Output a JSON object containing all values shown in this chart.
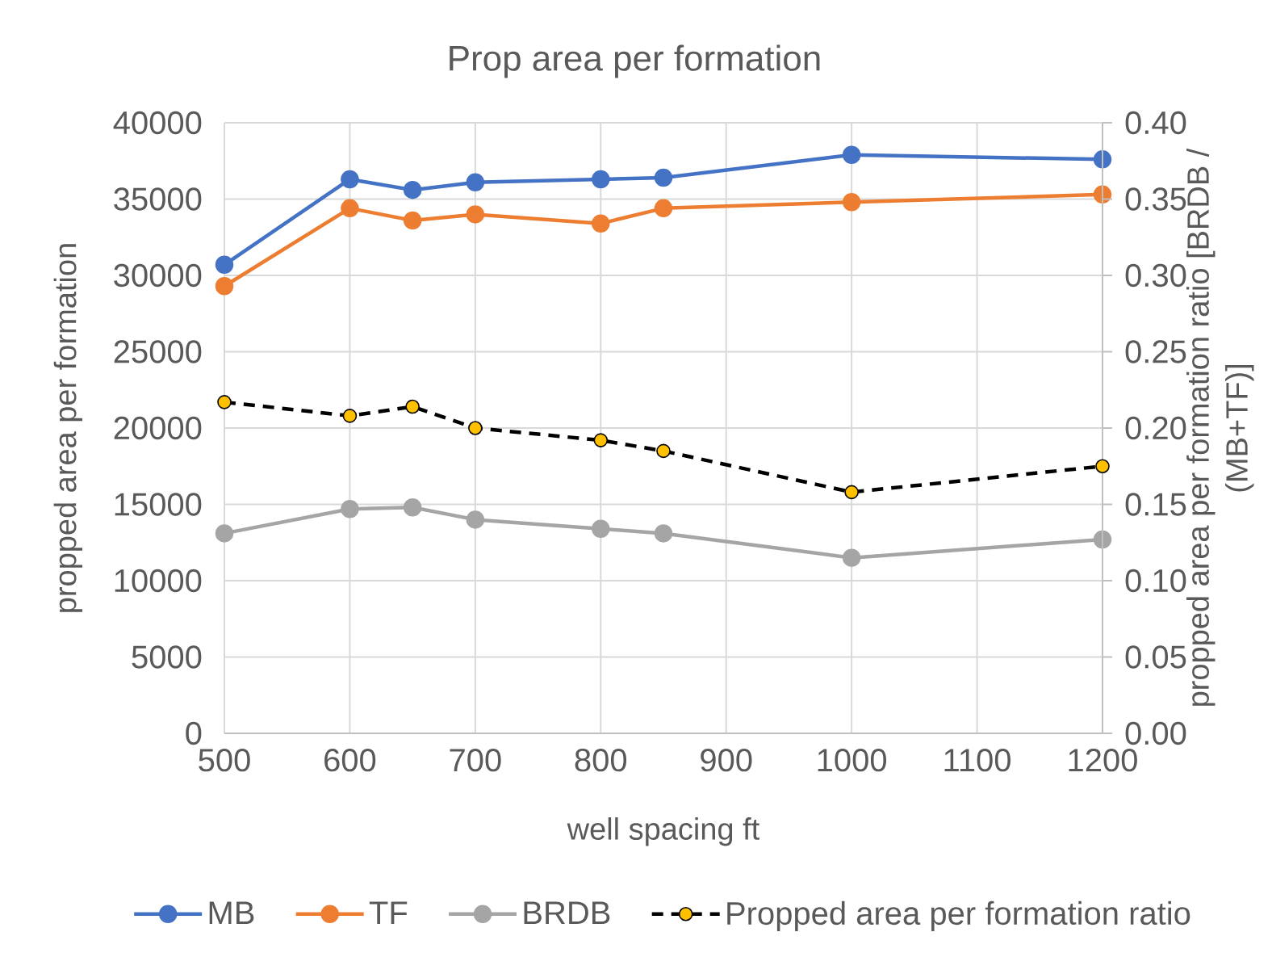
{
  "chart_data": {
    "type": "line",
    "title": "Prop area per formation",
    "xlabel": "well spacing ft",
    "ylabel": "propped area per formation",
    "y2label": "propped area per formation ratio [BRDB / (MB+TF)]",
    "x": [
      500,
      600,
      650,
      700,
      800,
      850,
      1000,
      1200
    ],
    "series": [
      {
        "name": "MB",
        "color": "#4472c4",
        "values": [
          30700,
          36300,
          35600,
          36100,
          36300,
          36400,
          37900,
          37600
        ]
      },
      {
        "name": "TF",
        "color": "#ed7d31",
        "values": [
          29300,
          34400,
          33600,
          34000,
          33400,
          34400,
          34800,
          35300
        ]
      },
      {
        "name": "BRDB",
        "color": "#a5a5a5",
        "values": [
          13100,
          14700,
          14800,
          14000,
          13400,
          13100,
          11500,
          12700
        ]
      },
      {
        "name": "Propped area per formation ratio",
        "color": "#000000",
        "colors": [
          "#ffc000",
          "#ffc000",
          "#ffc000",
          "#ffc000",
          "#ffc000",
          "#ffc000",
          "#ffc000",
          "#ffc000"
        ],
        "axis": "y2",
        "line_style": "dashed",
        "values": [
          0.217,
          0.208,
          0.214,
          0.2,
          0.192,
          0.185,
          0.158,
          0.175
        ]
      }
    ],
    "xlim": [
      500,
      1200
    ],
    "xticks": [
      500,
      600,
      700,
      800,
      900,
      1000,
      1100,
      1200
    ],
    "ylim": [
      0,
      40000
    ],
    "yticks": [
      0,
      5000,
      10000,
      15000,
      20000,
      25000,
      30000,
      35000,
      40000
    ],
    "y2lim": [
      0,
      0.4
    ],
    "y2ticks": [
      {
        "value": 0,
        "label": "0.00"
      },
      0.05,
      {
        "value": 0.1,
        "label": "0.10"
      },
      0.15,
      {
        "value": 0.2,
        "label": "0.20"
      },
      0.25,
      {
        "value": 0.3,
        "label": "0.30"
      },
      0.35,
      {
        "value": 0.4,
        "label": "0.40"
      }
    ],
    "grid": true,
    "legend": "bottom",
    "marker": "circle",
    "line_style": "solid"
  }
}
